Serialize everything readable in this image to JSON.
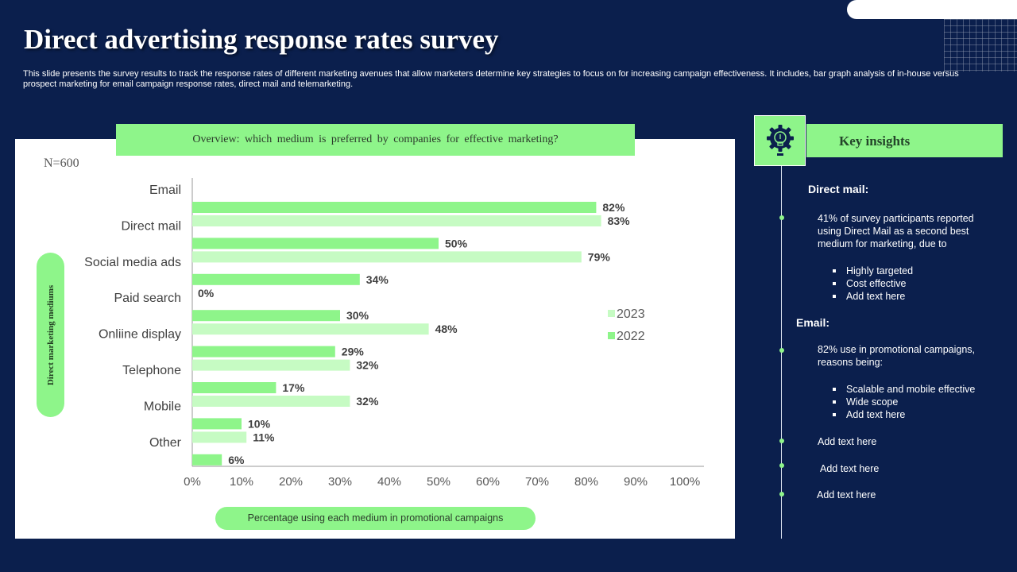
{
  "title": "Direct advertising response rates survey",
  "description": "This slide presents the survey results to track the response rates of different marketing avenues that allow marketers determine key strategies to focus on for increasing campaign effectiveness. It includes, bar graph analysis of in-house versus prospect marketing for email campaign response rates, direct mail and telemarketing.",
  "overview": "Overview: which medium is preferred by companies for effective marketing?",
  "sample_size": "N=600",
  "key_insights": {
    "title": "Key insights",
    "direct_mail_heading": "Direct mail:",
    "direct_mail_text": "41% of survey participants reported using Direct Mail as a second best medium for marketing, due to",
    "direct_mail_bullets": [
      "Highly targeted",
      "Cost effective",
      "Add text here"
    ],
    "email_heading": "Email:",
    "email_text": "82% use in promotional campaigns, reasons being:",
    "email_bullets": [
      "Scalable and mobile effective",
      "Wide scope",
      "Add text here"
    ],
    "extra_items": [
      "Add text here",
      "Add text here",
      "Add text here"
    ]
  },
  "colors": {
    "background": "#0b1f4d",
    "accent": "#8ef58a",
    "series_2022": "#8ef58a",
    "series_2023": "#c6fbc3"
  },
  "chart_data": {
    "type": "bar",
    "orientation": "horizontal",
    "categories": [
      "Email",
      "Direct mail",
      "Social media ads",
      "Paid search",
      "Onliine display",
      "Telephone",
      "Mobile",
      "Other"
    ],
    "series": [
      {
        "name": "2022",
        "values": [
          82,
          50,
          34,
          30,
          29,
          17,
          10,
          6
        ]
      },
      {
        "name": "2023",
        "values": [
          83,
          79,
          0,
          48,
          32,
          32,
          11,
          null
        ]
      }
    ],
    "xlim": [
      0,
      100
    ],
    "xticks": [
      0,
      10,
      20,
      30,
      40,
      50,
      60,
      70,
      80,
      90,
      100
    ],
    "tick_suffix": "%",
    "xlabel": "Percentage using each medium in promotional campaigns",
    "ylabel": "Direct marketing mediums",
    "legend_position": "right"
  }
}
